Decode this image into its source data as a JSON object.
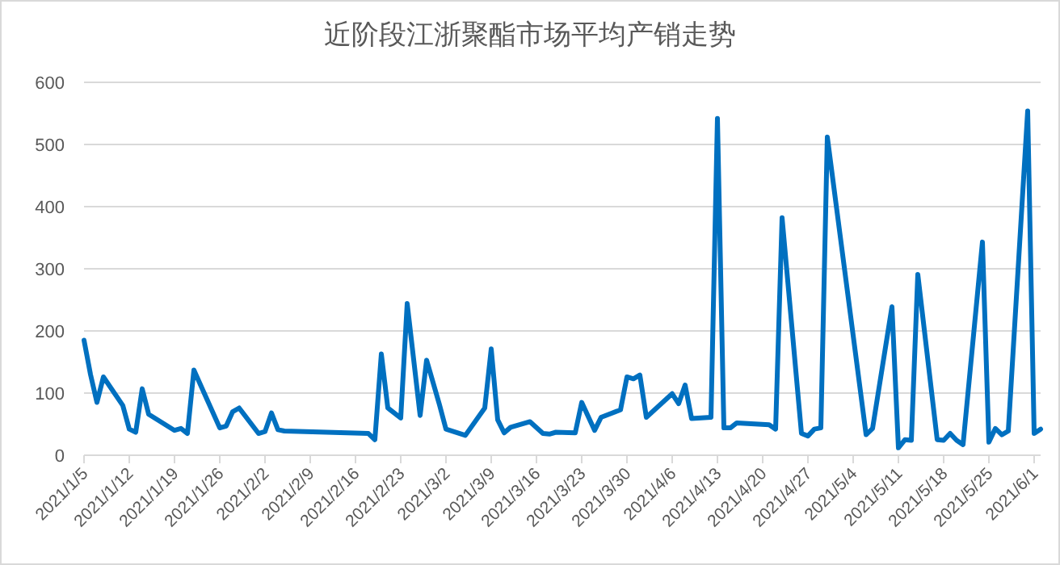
{
  "chart_data": {
    "type": "line",
    "title": "近阶段江浙聚酯市场平均产销走势",
    "grid": "y",
    "marker": "none",
    "line_style": "solid",
    "xlim": [
      "2021-01-05",
      "2021-06-02"
    ],
    "ylim": [
      0,
      600
    ],
    "yticks": [
      0,
      100,
      200,
      300,
      400,
      500,
      600
    ],
    "xticks": [
      {
        "value": "2021-01-05",
        "label": "2021/1/5"
      },
      {
        "value": "2021-01-12",
        "label": "2021/1/12"
      },
      {
        "value": "2021-01-19",
        "label": "2021/1/19"
      },
      {
        "value": "2021-01-26",
        "label": "2021/1/26"
      },
      {
        "value": "2021-02-02",
        "label": "2021/2/2"
      },
      {
        "value": "2021-02-09",
        "label": "2021/2/9"
      },
      {
        "value": "2021-02-16",
        "label": "2021/2/16"
      },
      {
        "value": "2021-02-23",
        "label": "2021/2/23"
      },
      {
        "value": "2021-03-02",
        "label": "2021/3/2"
      },
      {
        "value": "2021-03-09",
        "label": "2021/3/9"
      },
      {
        "value": "2021-03-16",
        "label": "2021/3/16"
      },
      {
        "value": "2021-03-23",
        "label": "2021/3/23"
      },
      {
        "value": "2021-03-30",
        "label": "2021/3/30"
      },
      {
        "value": "2021-04-06",
        "label": "2021/4/6"
      },
      {
        "value": "2021-04-13",
        "label": "2021/4/13"
      },
      {
        "value": "2021-04-20",
        "label": "2021/4/20"
      },
      {
        "value": "2021-04-27",
        "label": "2021/4/27"
      },
      {
        "value": "2021-05-04",
        "label": "2021/5/4"
      },
      {
        "value": "2021-05-11",
        "label": "2021/5/11"
      },
      {
        "value": "2021-05-18",
        "label": "2021/5/18"
      },
      {
        "value": "2021-05-25",
        "label": "2021/5/25"
      },
      {
        "value": "2021-06-01",
        "label": "2021/6/1"
      }
    ],
    "x": [
      "2021-01-05",
      "2021-01-06",
      "2021-01-07",
      "2021-01-08",
      "2021-01-11",
      "2021-01-12",
      "2021-01-13",
      "2021-01-14",
      "2021-01-15",
      "2021-01-19",
      "2021-01-20",
      "2021-01-21",
      "2021-01-22",
      "2021-01-26",
      "2021-01-27",
      "2021-01-28",
      "2021-01-29",
      "2021-02-01",
      "2021-02-02",
      "2021-02-03",
      "2021-02-04",
      "2021-02-05",
      "2021-02-18",
      "2021-02-19",
      "2021-02-20",
      "2021-02-21",
      "2021-02-23",
      "2021-02-24",
      "2021-02-26",
      "2021-02-27",
      "2021-03-01",
      "2021-03-02",
      "2021-03-05",
      "2021-03-08",
      "2021-03-09",
      "2021-03-10",
      "2021-03-11",
      "2021-03-12",
      "2021-03-15",
      "2021-03-17",
      "2021-03-18",
      "2021-03-19",
      "2021-03-22",
      "2021-03-23",
      "2021-03-25",
      "2021-03-26",
      "2021-03-29",
      "2021-03-30",
      "2021-03-31",
      "2021-04-01",
      "2021-04-02",
      "2021-04-06",
      "2021-04-07",
      "2021-04-08",
      "2021-04-09",
      "2021-04-12",
      "2021-04-13",
      "2021-04-14",
      "2021-04-15",
      "2021-04-16",
      "2021-04-21",
      "2021-04-22",
      "2021-04-23",
      "2021-04-26",
      "2021-04-27",
      "2021-04-28",
      "2021-04-29",
      "2021-04-30",
      "2021-05-06",
      "2021-05-07",
      "2021-05-10",
      "2021-05-11",
      "2021-05-12",
      "2021-05-13",
      "2021-05-14",
      "2021-05-17",
      "2021-05-18",
      "2021-05-19",
      "2021-05-20",
      "2021-05-21",
      "2021-05-24",
      "2021-05-25",
      "2021-05-26",
      "2021-05-27",
      "2021-05-28",
      "2021-05-31",
      "2021-06-01",
      "2021-06-02"
    ],
    "series": [
      {
        "color": "#0070c0",
        "values": [
          185,
          130,
          85,
          126,
          80,
          42,
          37,
          107,
          66,
          40,
          43,
          35,
          137,
          44,
          47,
          70,
          76,
          35,
          38,
          68,
          41,
          39,
          35,
          25,
          163,
          76,
          60,
          244,
          64,
          153,
          81,
          42,
          32,
          76,
          171,
          57,
          36,
          45,
          54,
          35,
          34,
          37,
          36,
          85,
          40,
          61,
          73,
          126,
          123,
          129,
          61,
          99,
          83,
          113,
          59,
          61,
          542,
          44,
          44,
          52,
          49,
          42,
          382,
          35,
          31,
          42,
          44,
          512,
          33,
          43,
          239,
          12,
          25,
          24,
          291,
          25,
          24,
          35,
          24,
          17,
          343,
          21,
          43,
          33,
          39,
          554,
          35,
          42
        ]
      }
    ]
  }
}
